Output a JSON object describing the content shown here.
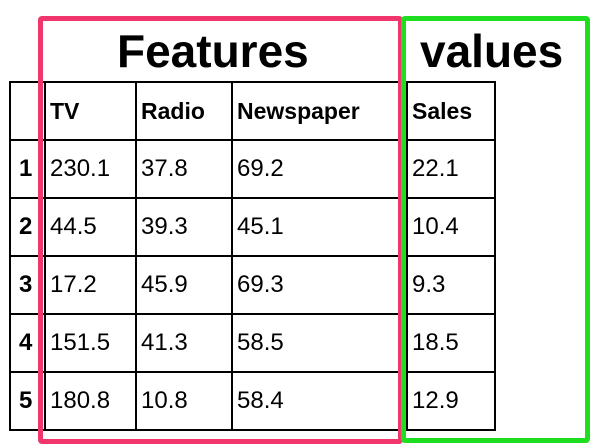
{
  "annotations": {
    "features": {
      "label": "Features",
      "color": "#f0366d"
    },
    "values": {
      "label": "values",
      "color": "#1fdd1f"
    }
  },
  "table": {
    "columns": [
      "",
      "TV",
      "Radio",
      "Newspaper",
      "Sales"
    ],
    "rows": [
      {
        "index": "1",
        "tv": "230.1",
        "radio": "37.8",
        "newspaper": "69.2",
        "sales": "22.1"
      },
      {
        "index": "2",
        "tv": "44.5",
        "radio": "39.3",
        "newspaper": "45.1",
        "sales": "10.4"
      },
      {
        "index": "3",
        "tv": "17.2",
        "radio": "45.9",
        "newspaper": "69.3",
        "sales": "9.3"
      },
      {
        "index": "4",
        "tv": "151.5",
        "radio": "41.3",
        "newspaper": "58.5",
        "sales": "18.5"
      },
      {
        "index": "5",
        "tv": "180.8",
        "radio": "10.8",
        "newspaper": "58.4",
        "sales": "12.9"
      }
    ]
  }
}
